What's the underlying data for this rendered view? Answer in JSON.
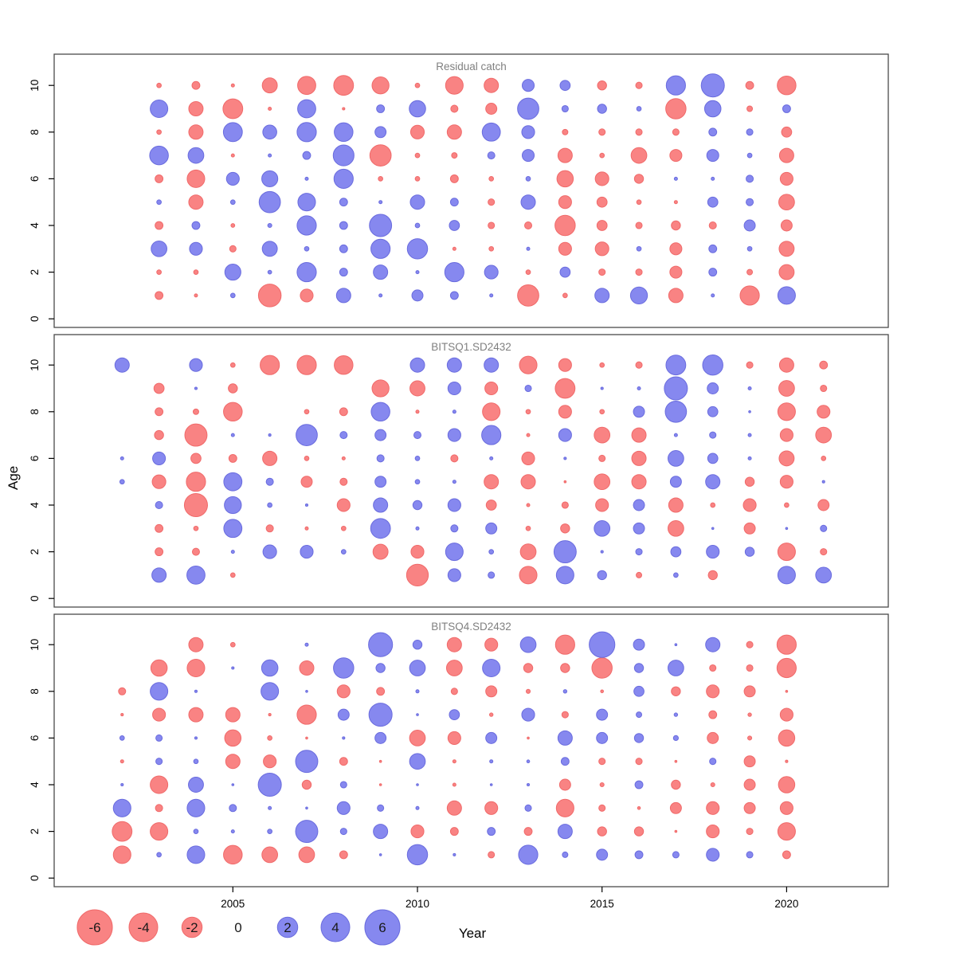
{
  "figure": {
    "background": "#ffffff"
  },
  "colors": {
    "negative_fill": "#F98383",
    "negative_stroke": "#F06A6A",
    "positive_fill": "#8688EF",
    "positive_stroke": "#6A6CDE",
    "panel_border": "#4a4a4a",
    "title_text": "#808080",
    "tick_text": "#000000",
    "legend_label_text": "#1a1a1a"
  },
  "axes": {
    "x_label": "Year",
    "y_label": "Age",
    "x_ticks": [
      2005,
      2010,
      2015,
      2020
    ],
    "y_ticks": [
      0,
      2,
      4,
      6,
      8,
      10
    ]
  },
  "legend": {
    "values": [
      -6,
      -4,
      -2,
      0,
      2,
      4,
      6
    ],
    "labels": [
      "-6",
      "-4",
      "-2",
      "0",
      "2",
      "4",
      "6"
    ]
  },
  "chart_data": [
    {
      "type": "bubble",
      "title": "Residual catch",
      "xlabel": "Year",
      "ylabel": "Age",
      "xlim": [
        2001.2,
        2022.9
      ],
      "ylim": [
        -1.3,
        11.6
      ],
      "legend_note": "circle area ~ |residual|; red = negative, blue = positive",
      "ages": [
        1,
        2,
        3,
        4,
        5,
        6,
        7,
        8,
        9,
        10
      ],
      "values": {
        "2003": [
          -0.3,
          -0.1,
          1.2,
          -0.3,
          0.1,
          -0.3,
          1.7,
          -0.1,
          1.5,
          -0.1
        ],
        "2004": [
          -0.05,
          -0.1,
          0.8,
          0.3,
          -1.0,
          -1.5,
          1.2,
          -1.0,
          -1.0,
          -0.3
        ],
        "2005": [
          0.1,
          1.25,
          -0.2,
          -0.07,
          0.1,
          0.8,
          -0.05,
          1.75,
          -1.9,
          -0.05
        ],
        "2006": [
          -2.5,
          0.07,
          1.1,
          0.08,
          2.2,
          1.25,
          0.05,
          0.95,
          -0.05,
          -1.1
        ],
        "2007": [
          -0.8,
          1.8,
          0.1,
          1.8,
          1.5,
          0.05,
          0.3,
          1.8,
          1.6,
          -1.6
        ],
        "2008": [
          1.0,
          0.3,
          0.3,
          0.3,
          0.3,
          1.8,
          2.1,
          1.7,
          -0.03,
          -1.9
        ],
        "2009": [
          0.05,
          1.0,
          1.8,
          2.4,
          0.05,
          -0.1,
          -2.2,
          0.6,
          0.3,
          -1.4
        ],
        "2010": [
          0.6,
          0.05,
          2.0,
          0.1,
          1.0,
          -0.1,
          -0.1,
          -0.9,
          1.3,
          -0.1
        ],
        "2011": [
          0.3,
          1.8,
          -0.05,
          0.5,
          0.3,
          -0.3,
          -0.15,
          -1.0,
          -0.25,
          -1.5
        ],
        "2012": [
          0.05,
          0.9,
          -0.1,
          -0.2,
          -0.2,
          -0.1,
          0.25,
          1.6,
          -0.6,
          -1.0
        ],
        "2013": [
          -2.2,
          -0.1,
          0.05,
          -0.25,
          1.0,
          0.1,
          0.7,
          0.8,
          2.2,
          0.7
        ],
        "2014": [
          -0.1,
          0.5,
          -0.8,
          -2.0,
          -0.8,
          -1.3,
          -1.0,
          -0.15,
          0.2,
          0.5
        ],
        "2015": [
          1.0,
          -0.2,
          -0.9,
          -0.5,
          -0.5,
          -0.9,
          -0.1,
          -0.2,
          0.4,
          -0.4
        ],
        "2016": [
          1.4,
          -0.2,
          0.1,
          -0.2,
          -0.1,
          -0.4,
          -1.2,
          -0.2,
          0.1,
          -0.2
        ],
        "2017": [
          -1.0,
          -0.7,
          -0.7,
          -0.4,
          -0.05,
          0.05,
          -0.7,
          -0.2,
          -2.0,
          1.8
        ],
        "2018": [
          0.05,
          0.3,
          0.3,
          -0.25,
          0.5,
          0.05,
          0.7,
          0.3,
          1.3,
          2.6
        ],
        "2019": [
          -1.8,
          -0.15,
          0.1,
          0.6,
          0.25,
          0.25,
          0.1,
          0.2,
          -0.15,
          -0.3
        ],
        "2020": [
          1.5,
          -1.1,
          -1.1,
          -0.6,
          -1.2,
          -0.8,
          -1.0,
          -0.5,
          0.3,
          -1.7
        ]
      }
    },
    {
      "type": "bubble",
      "title": "BITSQ1.SD2432",
      "xlabel": "Year",
      "ylabel": "Age",
      "xlim": [
        2001.2,
        2022.9
      ],
      "ylim": [
        -1.3,
        11.6
      ],
      "ages": [
        1,
        2,
        3,
        4,
        5,
        6,
        7,
        8,
        9,
        10
      ],
      "values": {
        "2002": [
          null,
          null,
          null,
          null,
          0.1,
          0.05,
          null,
          null,
          null,
          1.0
        ],
        "2003": [
          1.0,
          -0.3,
          -0.3,
          0.25,
          -0.9,
          0.8,
          -0.4,
          -0.3,
          -0.5,
          null
        ],
        "2004": [
          1.6,
          -0.25,
          -0.1,
          -2.6,
          -1.8,
          -0.5,
          -2.4,
          -0.15,
          0.03,
          0.8
        ],
        "2005": [
          -0.1,
          0.05,
          1.6,
          1.4,
          1.6,
          -0.3,
          0.05,
          -1.7,
          -0.4,
          -0.1
        ],
        "2006": [
          null,
          0.9,
          -0.25,
          0.1,
          0.25,
          -1.0,
          0.03,
          null,
          null,
          -1.8
        ],
        "2007": [
          null,
          0.8,
          -0.05,
          0.03,
          -0.6,
          -0.1,
          2.2,
          -0.1,
          null,
          -1.8
        ],
        "2008": [
          null,
          0.1,
          -0.1,
          -0.8,
          -0.25,
          -0.05,
          0.25,
          -0.3,
          null,
          -1.7
        ],
        "2009": [
          null,
          -1.1,
          1.9,
          1.0,
          0.6,
          0.25,
          0.6,
          1.7,
          -1.4,
          null
        ],
        "2010": [
          -2.3,
          -0.8,
          0.05,
          0.4,
          0.1,
          0.1,
          0.25,
          -0.05,
          -1.1,
          1.0
        ],
        "2011": [
          0.8,
          1.5,
          0.25,
          0.8,
          0.05,
          -0.25,
          0.8,
          0.05,
          0.8,
          1.0
        ],
        "2012": [
          0.2,
          0.1,
          0.6,
          -0.5,
          -1.0,
          0.05,
          1.8,
          -1.5,
          -0.8,
          1.0
        ],
        "2013": [
          -1.5,
          -1.2,
          -0.1,
          -0.05,
          -1.0,
          -0.8,
          -0.05,
          -0.1,
          0.2,
          -1.5
        ],
        "2014": [
          1.5,
          2.4,
          -0.4,
          -0.2,
          -0.02,
          0.03,
          0.8,
          -0.8,
          -1.9,
          -0.8
        ],
        "2015": [
          0.4,
          0.03,
          1.2,
          -0.8,
          -1.2,
          -0.2,
          -1.2,
          -0.1,
          0.03,
          -0.1
        ],
        "2016": [
          -0.15,
          0.2,
          0.6,
          0.6,
          -1.0,
          -1.0,
          -1.0,
          0.6,
          0.05,
          -0.2
        ],
        "2017": [
          0.1,
          0.5,
          -1.2,
          -1.0,
          0.6,
          1.2,
          0.05,
          2.2,
          2.6,
          1.9
        ],
        "2018": [
          -0.4,
          0.8,
          0.02,
          -0.1,
          1.0,
          0.5,
          0.2,
          0.5,
          0.6,
          2.0
        ],
        "2019": [
          null,
          0.4,
          -0.6,
          -0.8,
          -0.4,
          0.05,
          0.05,
          0.02,
          0.05,
          -0.2
        ],
        "2020": [
          1.5,
          -1.5,
          0.02,
          -0.1,
          -0.8,
          -1.1,
          -0.8,
          -1.5,
          -1.2,
          -1.0
        ],
        "2021": [
          1.2,
          -0.2,
          0.2,
          -0.6,
          0.03,
          -0.1,
          -1.2,
          -0.8,
          -0.2,
          -0.3
        ]
      }
    },
    {
      "type": "bubble",
      "title": "BITSQ4.SD2432",
      "xlabel": "Year",
      "ylabel": "Age",
      "xlim": [
        2001.2,
        2022.9
      ],
      "ylim": [
        -1.3,
        11.6
      ],
      "ages": [
        1,
        2,
        3,
        4,
        5,
        6,
        7,
        8,
        9,
        10
      ],
      "values": {
        "2002": [
          -1.5,
          -1.9,
          1.5,
          0.03,
          -0.05,
          0.1,
          -0.03,
          -0.25,
          null,
          null
        ],
        "2003": [
          0.1,
          -1.5,
          -0.25,
          -1.5,
          0.2,
          0.2,
          -0.8,
          1.5,
          -1.3,
          null
        ],
        "2004": [
          1.5,
          0.1,
          1.5,
          1.1,
          0.1,
          0.03,
          -1.0,
          0.03,
          -1.5,
          -1.0
        ],
        "2005": [
          -1.7,
          0.05,
          0.25,
          0.01,
          -1.0,
          -1.3,
          -1.0,
          null,
          0.03,
          -0.1
        ],
        "2006": [
          -1.2,
          0.1,
          0.05,
          2.6,
          -0.8,
          -0.1,
          -0.03,
          1.5,
          1.3,
          null
        ],
        "2007": [
          -1.2,
          2.4,
          0.01,
          -0.4,
          2.4,
          -0.02,
          -1.8,
          0.02,
          -1.0,
          0.05
        ],
        "2008": [
          -0.3,
          0.2,
          0.8,
          0.2,
          -0.3,
          0.03,
          0.6,
          -0.8,
          2.0,
          null
        ],
        "2009": [
          0.02,
          1.0,
          0.2,
          -0.01,
          -0.02,
          0.6,
          2.6,
          -0.3,
          0.4,
          2.8
        ],
        "2010": [
          2.0,
          -0.8,
          0.05,
          0.02,
          1.2,
          -1.2,
          0.02,
          0.05,
          1.2,
          0.4
        ],
        "2011": [
          0.03,
          -0.3,
          -1.0,
          -0.05,
          -0.05,
          -0.8,
          0.5,
          -0.2,
          -1.2,
          -1.0
        ],
        "2012": [
          -0.2,
          0.3,
          -0.8,
          0.01,
          0.05,
          0.6,
          -0.06,
          -0.6,
          1.5,
          -0.8
        ],
        "2013": [
          1.8,
          -0.3,
          0.2,
          0.03,
          0.04,
          -0.01,
          0.8,
          -0.08,
          -0.4,
          1.2
        ],
        "2014": [
          0.15,
          1.0,
          -1.5,
          -0.6,
          0.3,
          1.0,
          -0.2,
          0.06,
          -0.4,
          -1.8
        ],
        "2015": [
          0.6,
          -0.4,
          -0.2,
          -0.08,
          -0.2,
          0.6,
          0.6,
          -0.04,
          -2.0,
          3.2
        ],
        "2016": [
          0.3,
          -0.4,
          -0.04,
          0.3,
          -0.2,
          0.4,
          0.15,
          0.5,
          0.4,
          0.6
        ],
        "2017": [
          0.2,
          -0.01,
          -0.6,
          -0.4,
          -0.01,
          0.12,
          0.06,
          -0.4,
          1.2,
          0.01
        ],
        "2018": [
          0.8,
          -0.8,
          -0.8,
          -0.08,
          0.2,
          -0.6,
          -0.3,
          -0.8,
          -0.2,
          1.0
        ],
        "2019": [
          0.2,
          -0.2,
          -0.6,
          -0.6,
          -0.6,
          -0.08,
          -0.06,
          -0.6,
          -0.2,
          -0.2
        ],
        "2020": [
          -0.3,
          -1.5,
          -0.8,
          -1.3,
          -0.03,
          -1.3,
          -0.8,
          -0.01,
          -1.8,
          -1.8
        ]
      }
    }
  ]
}
